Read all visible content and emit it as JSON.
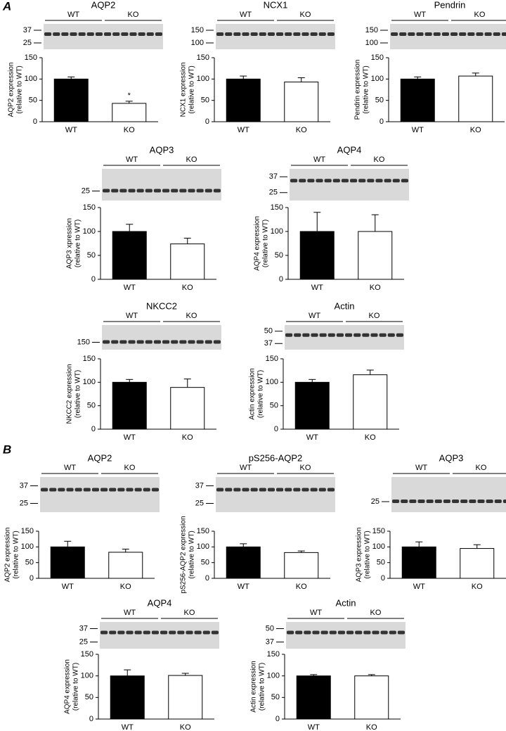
{
  "panel_labels": [
    "A",
    "B"
  ],
  "chart_data": [
    {
      "type": "bar",
      "title": "AQP2",
      "ylabel": [
        "AQP2 expression",
        "(relative to WT)"
      ],
      "categories": [
        "WT",
        "KO"
      ],
      "values": [
        100,
        43
      ],
      "errors": [
        5,
        5
      ],
      "significance": [
        null,
        "*"
      ],
      "colors": [
        "#000000",
        "#ffffff"
      ],
      "ylim": [
        0,
        150
      ],
      "yticks": [
        0,
        50,
        100,
        150
      ],
      "blot_groups": [
        "WT",
        "KO"
      ],
      "blot_markers": [
        37,
        25
      ]
    },
    {
      "type": "bar",
      "title": "NCX1",
      "ylabel": [
        "NCX1 expression",
        "(relative to WT)"
      ],
      "categories": [
        "WT",
        "KO"
      ],
      "values": [
        100,
        93
      ],
      "errors": [
        7,
        10
      ],
      "colors": [
        "#000000",
        "#ffffff"
      ],
      "ylim": [
        0,
        150
      ],
      "yticks": [
        0,
        50,
        100,
        150
      ],
      "blot_groups": [
        "WT",
        "KO"
      ],
      "blot_markers": [
        150,
        100
      ]
    },
    {
      "type": "bar",
      "title": "Pendrin",
      "ylabel": [
        "Pendrin expression",
        "(relative to WT)"
      ],
      "categories": [
        "WT",
        "KO"
      ],
      "values": [
        100,
        107
      ],
      "errors": [
        5,
        7
      ],
      "colors": [
        "#000000",
        "#ffffff"
      ],
      "ylim": [
        0,
        150
      ],
      "yticks": [
        0,
        50,
        100,
        150
      ],
      "blot_groups": [
        "WT",
        "KO"
      ],
      "blot_markers": [
        150,
        100
      ]
    },
    {
      "type": "bar",
      "title": "AQP3",
      "ylabel": [
        "AQP3 xpression",
        "(relative to WT)"
      ],
      "categories": [
        "WT",
        "KO"
      ],
      "values": [
        100,
        74
      ],
      "errors": [
        15,
        12
      ],
      "colors": [
        "#000000",
        "#ffffff"
      ],
      "ylim": [
        0,
        150
      ],
      "yticks": [
        0,
        50,
        100,
        150
      ],
      "blot_groups": [
        "WT",
        "KO"
      ],
      "blot_markers": [
        25
      ]
    },
    {
      "type": "bar",
      "title": "AQP4",
      "ylabel": [
        "AQP4 expression",
        "(relative to WT)"
      ],
      "categories": [
        "WT",
        "KO"
      ],
      "values": [
        100,
        100
      ],
      "errors": [
        40,
        35
      ],
      "colors": [
        "#000000",
        "#ffffff"
      ],
      "ylim": [
        0,
        150
      ],
      "yticks": [
        0,
        50,
        100,
        150
      ],
      "blot_groups": [
        "WT",
        "KO"
      ],
      "blot_markers": [
        37,
        25
      ]
    },
    {
      "type": "bar",
      "title": "NKCC2",
      "ylabel": [
        "NKCC2 expression",
        "(relative to WT)"
      ],
      "categories": [
        "WT",
        "KO"
      ],
      "values": [
        100,
        89
      ],
      "errors": [
        6,
        18
      ],
      "colors": [
        "#000000",
        "#ffffff"
      ],
      "ylim": [
        0,
        150
      ],
      "yticks": [
        0,
        50,
        100,
        150
      ],
      "blot_groups": [
        "WT",
        "KO"
      ],
      "blot_markers": [
        150
      ]
    },
    {
      "type": "bar",
      "title": "Actin",
      "ylabel": [
        "Actin expression",
        "(relative to WT)"
      ],
      "categories": [
        "WT",
        "KO"
      ],
      "values": [
        100,
        116
      ],
      "errors": [
        6,
        10
      ],
      "colors": [
        "#000000",
        "#ffffff"
      ],
      "ylim": [
        0,
        150
      ],
      "yticks": [
        0,
        50,
        100,
        150
      ],
      "blot_groups": [
        "WT",
        "KO"
      ],
      "blot_markers": [
        50,
        37
      ]
    },
    {
      "type": "bar",
      "title": "AQP2",
      "ylabel": [
        "AQP2 expression",
        "(relative to WT)"
      ],
      "categories": [
        "WT",
        "KO"
      ],
      "values": [
        100,
        83
      ],
      "errors": [
        18,
        10
      ],
      "colors": [
        "#000000",
        "#ffffff"
      ],
      "ylim": [
        0,
        150
      ],
      "yticks": [
        0,
        50,
        100,
        150
      ],
      "blot_groups": [
        "WT",
        "KO"
      ],
      "blot_markers": [
        37,
        25
      ]
    },
    {
      "type": "bar",
      "title": "pS256-AQP2",
      "ylabel": [
        "pS256-AQP2 expression",
        "(relative to WT)"
      ],
      "categories": [
        "WT",
        "KO"
      ],
      "values": [
        100,
        82
      ],
      "errors": [
        10,
        5
      ],
      "colors": [
        "#000000",
        "#ffffff"
      ],
      "ylim": [
        0,
        150
      ],
      "yticks": [
        0,
        50,
        100,
        150
      ],
      "blot_groups": [
        "WT",
        "KO"
      ],
      "blot_markers": [
        37,
        25
      ]
    },
    {
      "type": "bar",
      "title": "AQP3",
      "ylabel": [
        "AQP3 expression",
        "(relative to WT)"
      ],
      "categories": [
        "WT",
        "KO"
      ],
      "values": [
        100,
        95
      ],
      "errors": [
        16,
        12
      ],
      "colors": [
        "#000000",
        "#ffffff"
      ],
      "ylim": [
        0,
        150
      ],
      "yticks": [
        0,
        50,
        100,
        150
      ],
      "blot_groups": [
        "WT",
        "KO"
      ],
      "blot_markers": [
        25
      ]
    },
    {
      "type": "bar",
      "title": "AQP4",
      "ylabel": [
        "AQP4 expression",
        "(relative to WT)"
      ],
      "categories": [
        "WT",
        "KO"
      ],
      "values": [
        100,
        101
      ],
      "errors": [
        14,
        5
      ],
      "colors": [
        "#000000",
        "#ffffff"
      ],
      "ylim": [
        0,
        150
      ],
      "yticks": [
        0,
        50,
        100,
        150
      ],
      "blot_groups": [
        "WT",
        "KO"
      ],
      "blot_markers": [
        37,
        25
      ]
    },
    {
      "type": "bar",
      "title": "Actin",
      "ylabel": [
        "Actin expression",
        "(relative to WT)"
      ],
      "categories": [
        "WT",
        "KO"
      ],
      "values": [
        100,
        100
      ],
      "errors": [
        3,
        3
      ],
      "colors": [
        "#000000",
        "#ffffff"
      ],
      "ylim": [
        0,
        150
      ],
      "yticks": [
        0,
        50,
        100,
        150
      ],
      "blot_groups": [
        "WT",
        "KO"
      ],
      "blot_markers": [
        50,
        37
      ]
    }
  ]
}
